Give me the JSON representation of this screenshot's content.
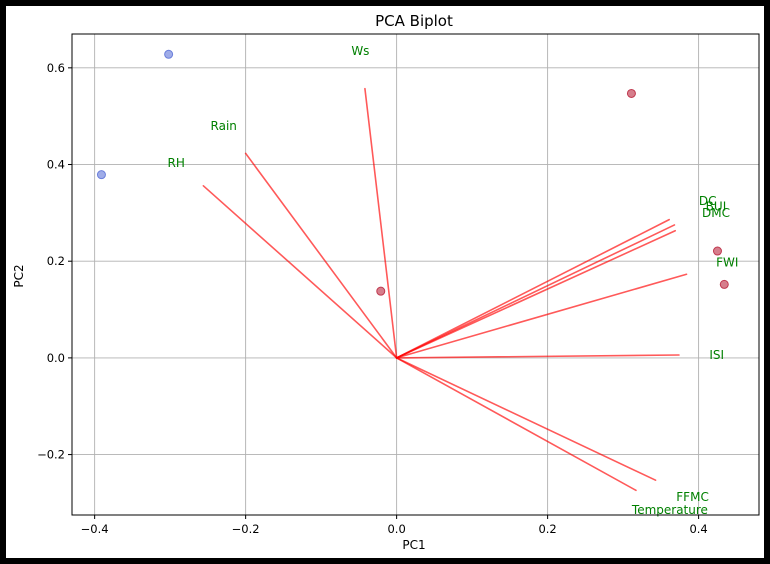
{
  "chart_data": {
    "type": "scatter",
    "title": "PCA Biplot",
    "xlabel": "PC1",
    "ylabel": "PC2",
    "xlim": [
      -0.43,
      0.48
    ],
    "ylim": [
      -0.325,
      0.67
    ],
    "xticks": [
      -0.4,
      -0.2,
      0.0,
      0.2,
      0.4
    ],
    "xtick_labels": [
      "−0.4",
      "−0.2",
      "0.0",
      "0.2",
      "0.4"
    ],
    "yticks": [
      -0.2,
      0.0,
      0.2,
      0.4,
      0.6
    ],
    "ytick_labels": [
      "−0.2",
      "0.0",
      "0.2",
      "0.4",
      "0.6"
    ],
    "grid": true,
    "points": [
      {
        "x": -0.302,
        "y": 0.628,
        "color": "#6b7fdb"
      },
      {
        "x": -0.391,
        "y": 0.379,
        "color": "#6b7fdb"
      },
      {
        "x": 0.311,
        "y": 0.547,
        "color": "#c0394f"
      },
      {
        "x": -0.021,
        "y": 0.138,
        "color": "#c0394f"
      },
      {
        "x": 0.425,
        "y": 0.221,
        "color": "#c0394f"
      },
      {
        "x": 0.434,
        "y": 0.152,
        "color": "#c0394f"
      }
    ],
    "loadings": [
      {
        "name": "Ws",
        "x": -0.042,
        "y": 0.557,
        "lx": -0.048,
        "ly": 0.635
      },
      {
        "name": "Rain",
        "x": -0.2,
        "y": 0.423,
        "lx": -0.229,
        "ly": 0.48
      },
      {
        "name": "RH",
        "x": -0.256,
        "y": 0.356,
        "lx": -0.292,
        "ly": 0.403
      },
      {
        "name": "DC",
        "x": 0.361,
        "y": 0.286,
        "lx": 0.412,
        "ly": 0.325
      },
      {
        "name": "BUI",
        "x": 0.368,
        "y": 0.275,
        "lx": 0.423,
        "ly": 0.313
      },
      {
        "name": "DMC",
        "x": 0.369,
        "y": 0.263,
        "lx": 0.423,
        "ly": 0.3
      },
      {
        "name": "FWI",
        "x": 0.384,
        "y": 0.173,
        "lx": 0.438,
        "ly": 0.197
      },
      {
        "name": "ISI",
        "x": 0.374,
        "y": 0.006,
        "lx": 0.424,
        "ly": 0.006
      },
      {
        "name": "FFMC",
        "x": 0.343,
        "y": -0.253,
        "lx": 0.392,
        "ly": -0.288
      },
      {
        "name": "Temperature",
        "x": 0.317,
        "y": -0.274,
        "lx": 0.362,
        "ly": -0.315
      }
    ],
    "colors": {
      "arrow": "#ff0000",
      "label": "#008000",
      "grid": "#b0b0b0"
    }
  }
}
